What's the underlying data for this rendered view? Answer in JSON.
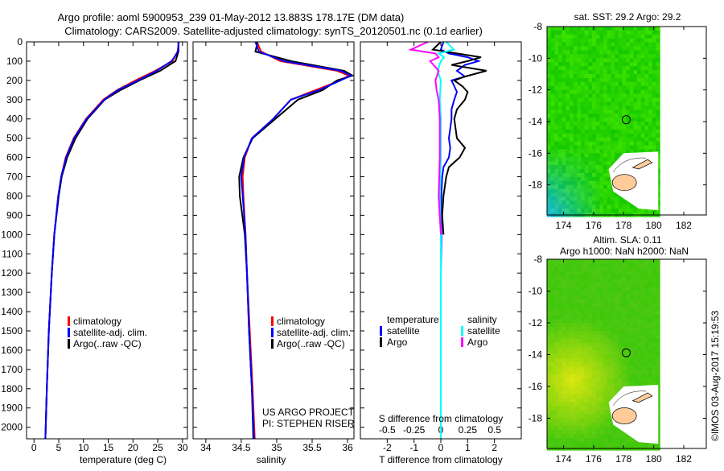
{
  "header": {
    "title_line1": "Argo profile: aoml 5900953_239 01-May-2012 13.883S 178.17E (DM data)",
    "title_line2": "Climatology: CARS2009. Satellite-adjusted climatology: synTS_20120501.nc (0.1d earlier)"
  },
  "credits": {
    "project": "US ARGO PROJECT",
    "pi": "PI: STEPHEN RISER",
    "imos": "©IMOS 03-Aug-2017 15:19:53"
  },
  "chart_data": [
    {
      "type": "line",
      "id": "temperature",
      "xlabel": "temperature (deg C)",
      "xlim": [
        -1.5,
        31
      ],
      "xticks": [
        0,
        5,
        10,
        15,
        20,
        25,
        30
      ],
      "ylim": [
        0,
        2060
      ],
      "yreversed": true,
      "yticks": [
        0,
        100,
        200,
        300,
        400,
        500,
        600,
        700,
        800,
        900,
        1000,
        1100,
        1200,
        1300,
        1400,
        1500,
        1600,
        1700,
        1800,
        1900,
        2000
      ],
      "legend": [
        "climatology",
        "satellite-adj. clim.",
        "Argo(..raw -QC)"
      ],
      "series": [
        {
          "name": "climatology",
          "color": "#ff0000",
          "depths": [
            0,
            50,
            100,
            150,
            200,
            250,
            300,
            400,
            500,
            600,
            700,
            800,
            1000,
            1200,
            1500,
            1800,
            2060
          ],
          "values": [
            29.3,
            29.0,
            28.0,
            24.5,
            20.5,
            16.8,
            14.0,
            10.5,
            8.0,
            6.4,
            5.5,
            4.9,
            4.1,
            3.6,
            3.0,
            2.6,
            2.3
          ]
        },
        {
          "name": "Argo(..raw -QC)",
          "color": "#000000",
          "depths": [
            0,
            50,
            100,
            150,
            200,
            250,
            300,
            400,
            500,
            600,
            700,
            800,
            1000,
            1200,
            1500,
            1800,
            2060
          ],
          "values": [
            29.2,
            29.2,
            28.6,
            25.5,
            21.3,
            17.5,
            14.3,
            10.8,
            8.4,
            6.7,
            5.6,
            5.0,
            4.1,
            3.6,
            3.0,
            2.6,
            2.3
          ]
        },
        {
          "name": "satellite-adj. clim.",
          "color": "#0000ff",
          "depths": [
            0,
            50,
            100,
            150,
            200,
            250,
            300,
            400,
            500,
            600,
            700,
            800,
            1000,
            1200,
            1500,
            1800,
            2060
          ],
          "values": [
            29.2,
            29.1,
            27.8,
            24.8,
            21.0,
            17.0,
            14.2,
            10.6,
            8.1,
            6.5,
            5.5,
            4.9,
            4.1,
            3.6,
            3.0,
            2.6,
            2.3
          ]
        }
      ]
    },
    {
      "type": "line",
      "id": "salinity",
      "xlabel": "salinity",
      "xlim": [
        33.82,
        36.09
      ],
      "xticks": [
        34,
        34.5,
        35,
        35.5,
        36
      ],
      "ylim": [
        0,
        2060
      ],
      "yreversed": true,
      "legend": [
        "climatology",
        "satellite-adj. clim.",
        "Argo(..raw -QC)"
      ],
      "series": [
        {
          "name": "climatology",
          "color": "#ff0000",
          "depths": [
            0,
            50,
            100,
            150,
            175,
            200,
            250,
            300,
            400,
            500,
            600,
            700,
            800,
            1000,
            1200,
            1500,
            1800,
            2060
          ],
          "values": [
            34.72,
            34.78,
            35.05,
            35.85,
            36.02,
            35.9,
            35.55,
            35.2,
            34.95,
            34.65,
            34.55,
            34.52,
            34.53,
            34.56,
            34.58,
            34.62,
            34.66,
            34.69
          ]
        },
        {
          "name": "Argo(..raw -QC)",
          "color": "#000000",
          "depths": [
            0,
            50,
            100,
            150,
            175,
            200,
            250,
            300,
            400,
            500,
            600,
            700,
            800,
            1000,
            1200,
            1500,
            1800,
            2060
          ],
          "values": [
            34.73,
            34.7,
            35.2,
            35.95,
            36.07,
            35.85,
            35.65,
            35.3,
            34.98,
            34.66,
            34.53,
            34.47,
            34.48,
            34.55,
            34.58,
            34.61,
            34.65,
            34.67
          ]
        },
        {
          "name": "satellite-adj. clim.",
          "color": "#0000ff",
          "depths": [
            0,
            50,
            100,
            150,
            175,
            200,
            250,
            300,
            400,
            500,
            600,
            700,
            800,
            1000,
            1200,
            1500,
            1800,
            2060
          ],
          "values": [
            34.7,
            34.75,
            35.1,
            35.9,
            36.05,
            35.9,
            35.6,
            35.2,
            34.95,
            34.65,
            34.54,
            34.5,
            34.52,
            34.56,
            34.58,
            34.61,
            34.65,
            34.68
          ]
        }
      ]
    },
    {
      "type": "line",
      "id": "difference",
      "xlabel": "T difference from climatology",
      "xlim": [
        -3,
        3
      ],
      "xticks": [
        -2,
        -1,
        0,
        1,
        2
      ],
      "secondary_xlabel": "S difference from climatology",
      "secondary_xlim": [
        -0.75,
        0.75
      ],
      "secondary_xticks": [
        -0.5,
        -0.25,
        0,
        0.25,
        0.5
      ],
      "ylim": [
        0,
        2060
      ],
      "yreversed": true,
      "legend": {
        "temperature_heading": "temperature",
        "salinity_heading": "salinity",
        "t_sat": "satellite",
        "t_argo": "Argo",
        "s_sat": "satellite",
        "s_argo": "Argo"
      },
      "series": [
        {
          "name": "T satellite",
          "axis": "T",
          "color": "#0000ff",
          "depths": [
            0,
            40,
            60,
            80,
            100,
            120,
            150,
            180,
            200,
            230,
            260,
            300,
            350,
            400,
            500,
            550,
            600,
            650,
            700,
            800,
            900,
            1000,
            1200,
            1500,
            2060
          ],
          "values": [
            0.1,
            0.0,
            0.3,
            1.0,
            1.4,
            0.9,
            0.6,
            0.9,
            0.4,
            0.5,
            0.6,
            0.5,
            0.4,
            0.4,
            0.3,
            0.35,
            0.3,
            0.1,
            0.05,
            0.02,
            0.0,
            0.02,
            0.0,
            0.0,
            0.0
          ]
        },
        {
          "name": "T Argo",
          "axis": "T",
          "color": "#000000",
          "depths": [
            0,
            40,
            60,
            80,
            100,
            120,
            150,
            180,
            200,
            230,
            260,
            300,
            350,
            400,
            500,
            550,
            600,
            650,
            700,
            800,
            900,
            1000
          ],
          "values": [
            0.0,
            -0.3,
            0.6,
            1.5,
            1.0,
            0.4,
            1.7,
            0.9,
            0.5,
            0.8,
            1.0,
            0.9,
            0.6,
            0.5,
            0.6,
            0.9,
            0.7,
            0.3,
            0.2,
            0.1,
            0.05,
            0.1
          ]
        },
        {
          "name": "S satellite",
          "axis": "S",
          "color": "#00ffff",
          "depths": [
            0,
            40,
            60,
            80,
            100,
            150,
            200,
            300,
            400,
            600,
            800,
            1000,
            1500,
            2060
          ],
          "values": [
            0.05,
            0.12,
            -0.02,
            0.03,
            0.0,
            -0.03,
            0.0,
            -0.01,
            0.0,
            0.0,
            -0.01,
            0.0,
            0.0,
            0.0
          ]
        },
        {
          "name": "S Argo",
          "axis": "S",
          "color": "#ff00ff",
          "depths": [
            0,
            40,
            60,
            80,
            100,
            150,
            200,
            250,
            300,
            400,
            600,
            800,
            1000
          ],
          "values": [
            -0.12,
            -0.28,
            -0.05,
            -0.02,
            -0.1,
            -0.02,
            -0.05,
            -0.04,
            -0.02,
            -0.01,
            -0.01,
            -0.02,
            0.0
          ]
        }
      ]
    },
    {
      "type": "heatmap",
      "id": "sst-map",
      "title": "sat. SST: 29.2 Argo: 29.2",
      "xlim": [
        172.9,
        183.5
      ],
      "ylim": [
        -19.9,
        -8
      ],
      "xticks": [
        174,
        176,
        178,
        180,
        182
      ],
      "yticks": [
        -8,
        -10,
        -12,
        -14,
        -16,
        -18
      ],
      "argo_position": [
        178.17,
        -13.883
      ]
    },
    {
      "type": "heatmap",
      "id": "sla-map",
      "title_line1": "Altim. SLA: 0.11",
      "title_line2": "Argo h1000: NaN h2000: NaN",
      "xlim": [
        172.9,
        183.5
      ],
      "ylim": [
        -19.9,
        -8
      ],
      "xticks": [
        174,
        176,
        178,
        180,
        182
      ],
      "yticks": [
        -8,
        -10,
        -12,
        -14,
        -16,
        -18
      ],
      "argo_position": [
        178.17,
        -13.883
      ]
    }
  ]
}
